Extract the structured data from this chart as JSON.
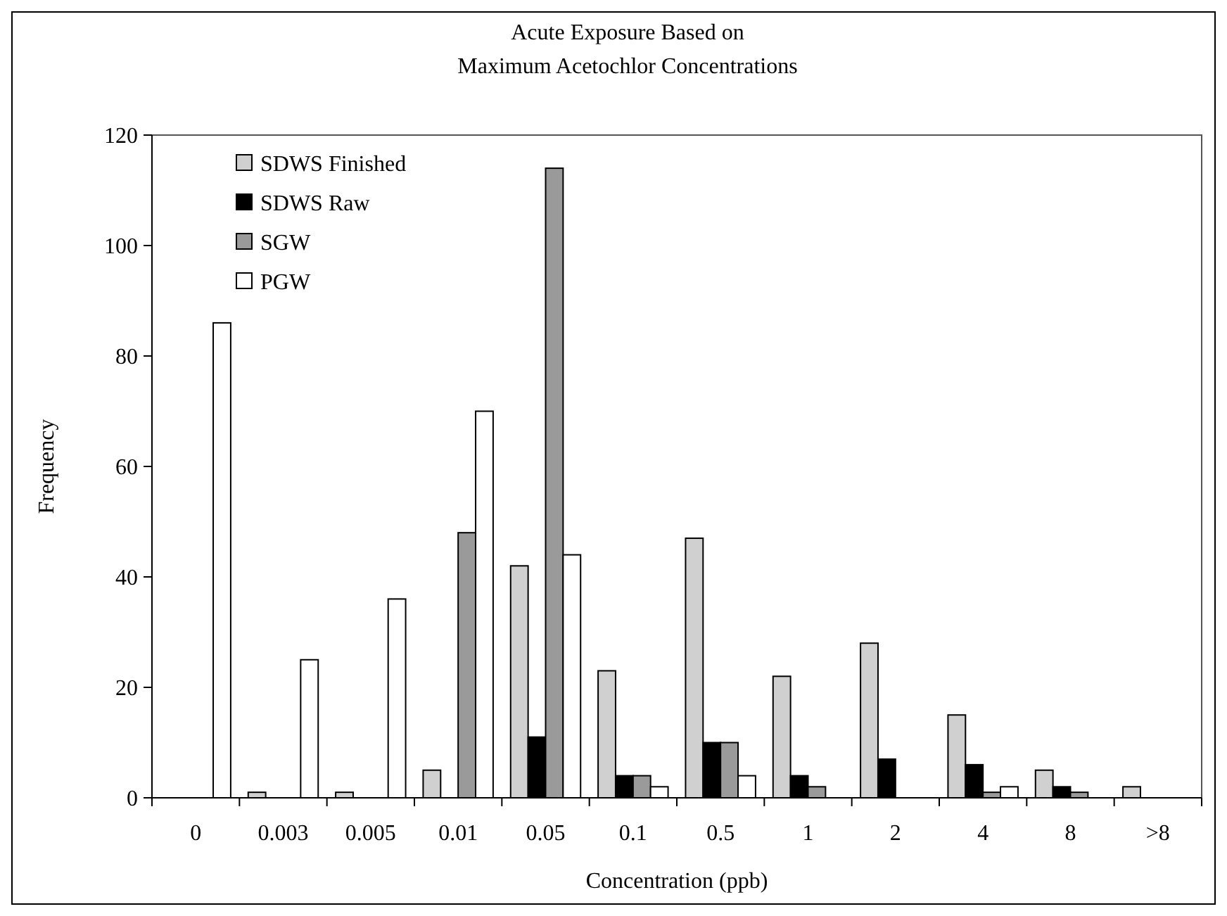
{
  "chart_data": {
    "type": "bar",
    "title": "Acute Exposure Based on\nMaximum Acetochlor Concentrations",
    "xlabel": "Concentration (ppb)",
    "ylabel": "Frequency",
    "categories": [
      "0",
      "0.003",
      "0.005",
      "0.01",
      "0.05",
      "0.1",
      "0.5",
      "1",
      "2",
      "4",
      "8",
      ">8"
    ],
    "series": [
      {
        "name": "SDWS Finished",
        "color": "#d0d0d0",
        "values": [
          0,
          1,
          1,
          5,
          42,
          23,
          47,
          22,
          28,
          15,
          5,
          2
        ]
      },
      {
        "name": "SDWS Raw",
        "color": "#000000",
        "values": [
          0,
          0,
          0,
          0,
          11,
          4,
          10,
          4,
          7,
          6,
          2,
          0
        ]
      },
      {
        "name": "SGW",
        "color": "#9a9a9a",
        "values": [
          0,
          0,
          0,
          48,
          114,
          4,
          10,
          2,
          0,
          1,
          1,
          0
        ]
      },
      {
        "name": "PGW",
        "color": "#ffffff",
        "values": [
          86,
          25,
          36,
          70,
          44,
          2,
          4,
          0,
          0,
          2,
          0,
          0
        ]
      }
    ],
    "ylim": [
      0,
      120
    ],
    "yticks": [
      0,
      20,
      40,
      60,
      80,
      100,
      120
    ],
    "grid": false,
    "legend": "top left"
  }
}
